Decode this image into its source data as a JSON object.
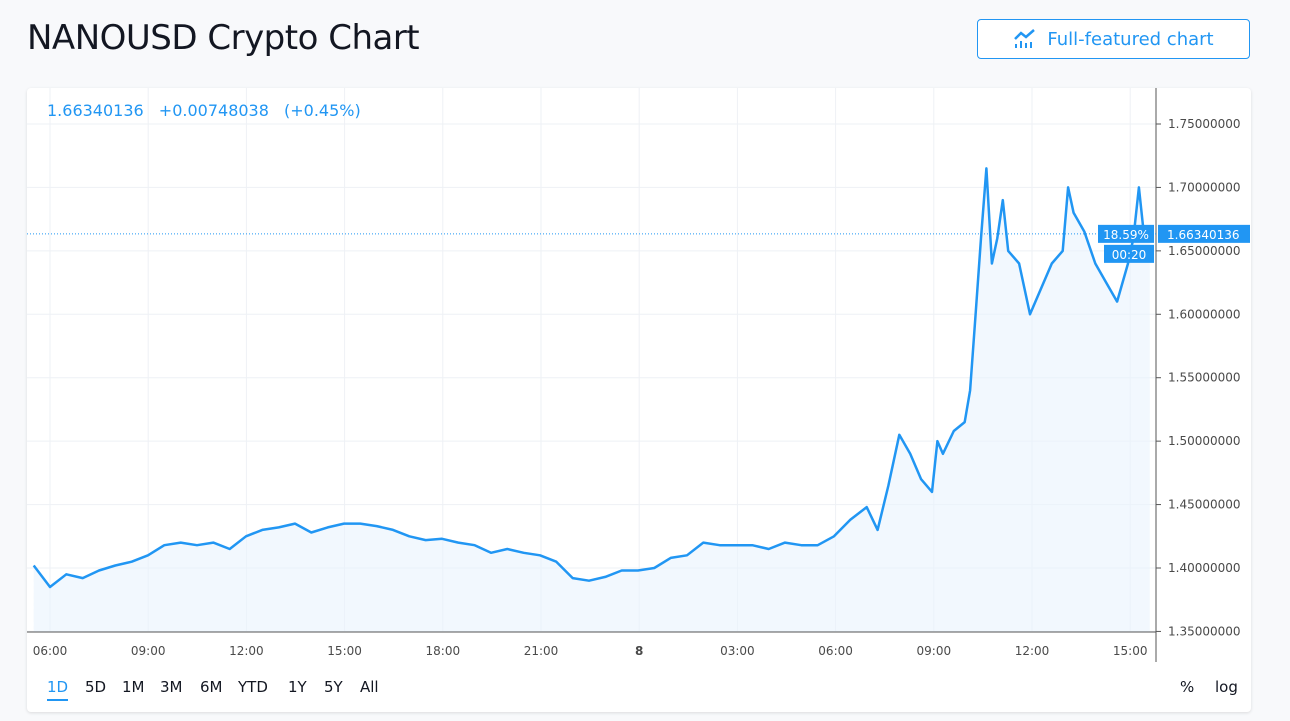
{
  "title": "NANOUSD Crypto Chart",
  "full_chart_button": "Full-featured chart",
  "header": {
    "price": "1.66340136",
    "change": "+0.00748038",
    "change_pct": "(+0.45%)"
  },
  "price_label": {
    "pct": "18.59%",
    "price": "1.66340136",
    "countdown": "00:20"
  },
  "ranges": [
    "1D",
    "5D",
    "1M",
    "3M",
    "6M",
    "YTD",
    "1Y",
    "5Y",
    "All"
  ],
  "active_range": "1D",
  "options": [
    "%",
    "log"
  ],
  "colors": {
    "line": "#2196f3",
    "fill": "#eaf3fd",
    "accent": "#2196f3"
  },
  "chart_data": {
    "type": "area",
    "ylim": [
      1.35,
      1.77
    ],
    "yticks": [
      "1.75000000",
      "1.70000000",
      "1.65000000",
      "1.60000000",
      "1.55000000",
      "1.50000000",
      "1.45000000",
      "1.40000000",
      "1.35000000"
    ],
    "xticks": [
      "06:00",
      "09:00",
      "12:00",
      "15:00",
      "18:00",
      "21:00",
      "8",
      "03:00",
      "06:00",
      "09:00",
      "12:00",
      "15:00"
    ],
    "grid": true,
    "last_value": 1.66340136,
    "points": [
      [
        "7 05:30",
        1.402
      ],
      [
        "7 06:00",
        1.385
      ],
      [
        "7 06:30",
        1.395
      ],
      [
        "7 07:00",
        1.392
      ],
      [
        "7 07:30",
        1.398
      ],
      [
        "7 08:00",
        1.402
      ],
      [
        "7 08:30",
        1.405
      ],
      [
        "7 09:00",
        1.41
      ],
      [
        "7 09:30",
        1.418
      ],
      [
        "7 10:00",
        1.42
      ],
      [
        "7 10:30",
        1.418
      ],
      [
        "7 11:00",
        1.42
      ],
      [
        "7 11:30",
        1.415
      ],
      [
        "7 12:00",
        1.425
      ],
      [
        "7 12:30",
        1.43
      ],
      [
        "7 13:00",
        1.432
      ],
      [
        "7 13:30",
        1.435
      ],
      [
        "7 14:00",
        1.428
      ],
      [
        "7 14:30",
        1.432
      ],
      [
        "7 15:00",
        1.435
      ],
      [
        "7 15:30",
        1.435
      ],
      [
        "7 16:00",
        1.433
      ],
      [
        "7 16:30",
        1.43
      ],
      [
        "7 17:00",
        1.425
      ],
      [
        "7 17:30",
        1.422
      ],
      [
        "7 18:00",
        1.423
      ],
      [
        "7 18:30",
        1.42
      ],
      [
        "7 19:00",
        1.418
      ],
      [
        "7 19:30",
        1.412
      ],
      [
        "7 20:00",
        1.415
      ],
      [
        "7 20:30",
        1.412
      ],
      [
        "7 21:00",
        1.41
      ],
      [
        "7 21:30",
        1.405
      ],
      [
        "7 22:00",
        1.392
      ],
      [
        "7 22:30",
        1.39
      ],
      [
        "7 23:00",
        1.393
      ],
      [
        "7 23:30",
        1.398
      ],
      [
        "8 00:00",
        1.398
      ],
      [
        "8 00:30",
        1.4
      ],
      [
        "8 01:00",
        1.408
      ],
      [
        "8 01:30",
        1.41
      ],
      [
        "8 02:00",
        1.42
      ],
      [
        "8 02:30",
        1.418
      ],
      [
        "8 03:00",
        1.418
      ],
      [
        "8 03:30",
        1.418
      ],
      [
        "8 04:00",
        1.415
      ],
      [
        "8 04:30",
        1.42
      ],
      [
        "8 05:00",
        1.418
      ],
      [
        "8 05:30",
        1.418
      ],
      [
        "8 06:00",
        1.425
      ],
      [
        "8 06:30",
        1.438
      ],
      [
        "8 07:00",
        1.448
      ],
      [
        "8 07:20",
        1.43
      ],
      [
        "8 07:40",
        1.465
      ],
      [
        "8 08:00",
        1.505
      ],
      [
        "8 08:20",
        1.49
      ],
      [
        "8 08:40",
        1.47
      ],
      [
        "8 09:00",
        1.46
      ],
      [
        "8 09:10",
        1.5
      ],
      [
        "8 09:20",
        1.49
      ],
      [
        "8 09:40",
        1.508
      ],
      [
        "8 10:00",
        1.515
      ],
      [
        "8 10:10",
        1.54
      ],
      [
        "8 10:20",
        1.6
      ],
      [
        "8 10:30",
        1.66
      ],
      [
        "8 10:40",
        1.715
      ],
      [
        "8 10:50",
        1.64
      ],
      [
        "8 11:00",
        1.66
      ],
      [
        "8 11:10",
        1.69
      ],
      [
        "8 11:20",
        1.65
      ],
      [
        "8 11:40",
        1.64
      ],
      [
        "8 12:00",
        1.6
      ],
      [
        "8 12:20",
        1.62
      ],
      [
        "8 12:40",
        1.64
      ],
      [
        "8 13:00",
        1.65
      ],
      [
        "8 13:10",
        1.7
      ],
      [
        "8 13:20",
        1.68
      ],
      [
        "8 13:40",
        1.665
      ],
      [
        "8 14:00",
        1.64
      ],
      [
        "8 14:20",
        1.625
      ],
      [
        "8 14:40",
        1.61
      ],
      [
        "8 15:00",
        1.64
      ],
      [
        "8 15:10",
        1.66
      ],
      [
        "8 15:20",
        1.7
      ],
      [
        "8 15:30",
        1.66
      ],
      [
        "8 15:40",
        1.663
      ]
    ]
  }
}
